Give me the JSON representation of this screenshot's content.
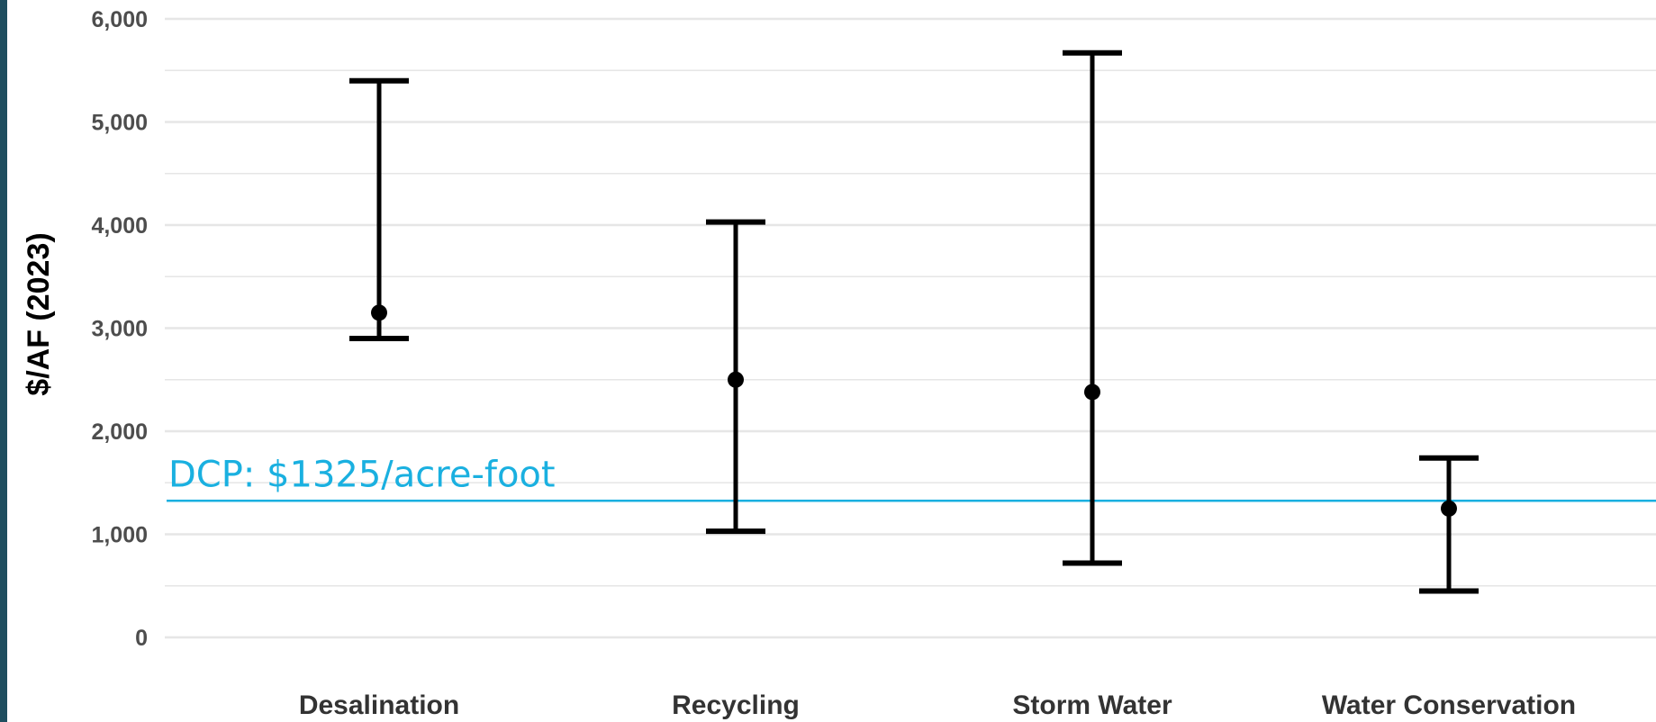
{
  "chart_data": {
    "type": "errorbar",
    "title": "",
    "xlabel": "",
    "ylabel": "$/AF (2023)",
    "ylim": [
      0,
      6000
    ],
    "y_ticks": [
      0,
      1000,
      2000,
      3000,
      4000,
      5000,
      6000
    ],
    "y_tick_labels": [
      "0",
      "1,000",
      "2,000",
      "3,000",
      "4,000",
      "5,000",
      "6,000"
    ],
    "grid": true,
    "categories": [
      "Desalination",
      "Recycling",
      "Storm Water",
      "Water Conservation"
    ],
    "points": [
      {
        "category": "Desalination",
        "low": 2900,
        "high": 5400,
        "value": 3150
      },
      {
        "category": "Recycling",
        "low": 1030,
        "high": 4030,
        "value": 2500
      },
      {
        "category": "Storm Water",
        "low": 720,
        "high": 5670,
        "value": 2380
      },
      {
        "category": "Water Conservation",
        "low": 450,
        "high": 1740,
        "value": 1250
      }
    ],
    "reference_line": {
      "value": 1325,
      "label": "DCP: $1325/acre-foot",
      "color": "#1ab0e0"
    },
    "colors": {
      "errorbar": "#000000",
      "grid": "#e6e6e6",
      "side_bar": "#1f4e5f"
    }
  }
}
